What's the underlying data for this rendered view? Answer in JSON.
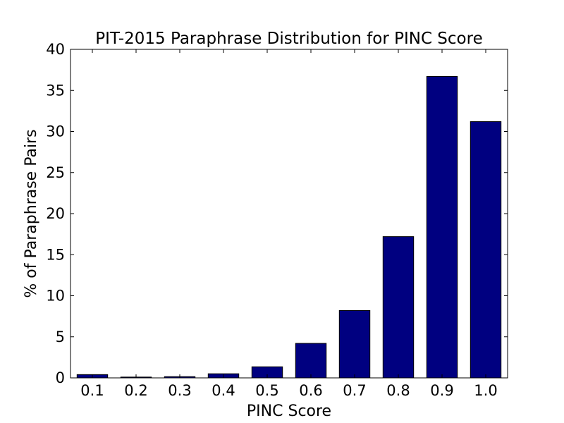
{
  "chart_data": {
    "type": "bar",
    "title": "PIT-2015 Paraphrase Distribution for PINC Score",
    "xlabel": "PINC Score",
    "ylabel": "% of Paraphrase Pairs",
    "categories": [
      "0.1",
      "0.2",
      "0.3",
      "0.4",
      "0.5",
      "0.6",
      "0.7",
      "0.8",
      "0.9",
      "1.0"
    ],
    "values": [
      0.4,
      0.1,
      0.15,
      0.5,
      1.35,
      4.2,
      8.2,
      17.2,
      36.7,
      31.2
    ],
    "ylim": [
      0,
      40
    ],
    "yticks": [
      "0",
      "5",
      "10",
      "15",
      "20",
      "25",
      "30",
      "35",
      "40"
    ],
    "bar_color": "#000080",
    "grid": false,
    "legend": "none"
  }
}
